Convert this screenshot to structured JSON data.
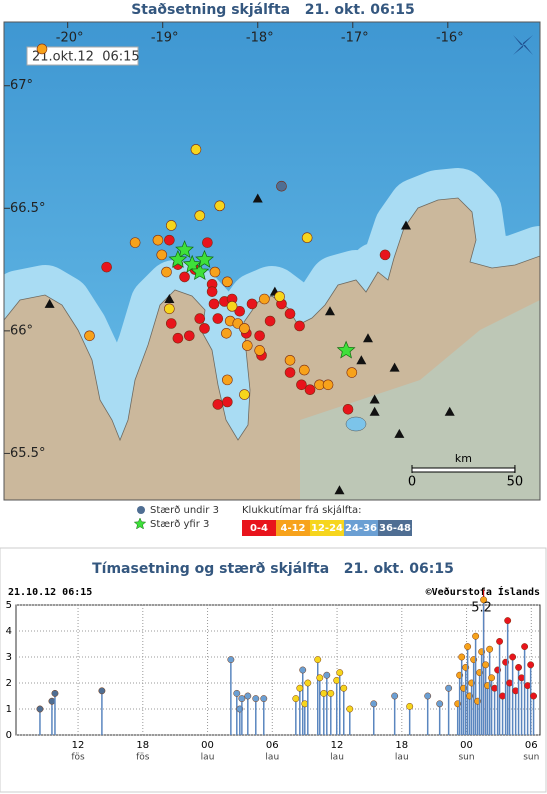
{
  "map": {
    "title": "Staðsetning skjálfta   21. okt. 06:15",
    "timestamp": "21.okt.12  06:15",
    "lonlim": [
      -20.67,
      -15.03
    ],
    "latlim": [
      65.31,
      67.26
    ],
    "lon_ticks": [
      {
        "value": -20,
        "label": "-20°"
      },
      {
        "value": -19,
        "label": "-19°"
      },
      {
        "value": -18,
        "label": "-18°"
      },
      {
        "value": -17,
        "label": "-17°"
      },
      {
        "value": -16,
        "label": "-16°"
      }
    ],
    "lat_ticks": [
      {
        "value": 67,
        "label": "67°"
      },
      {
        "value": 66.5,
        "label": "66.5°"
      },
      {
        "value": 66,
        "label": "66°"
      },
      {
        "value": 65.5,
        "label": "65.5°"
      }
    ],
    "scale": {
      "unit": "km",
      "ticks": [
        0,
        50
      ]
    },
    "quake_groups": [
      {
        "lon": [
          -19.59,
          -18.93,
          -18.84,
          -18.77,
          -18.66,
          -18.53,
          -18.48,
          -18.46,
          -18.56,
          -18.61,
          -18.72,
          -18.84,
          -18.91,
          -18.42,
          -18.35,
          -18.27,
          -18.19,
          -18.06,
          -17.98,
          -17.96,
          -17.87,
          -17.75,
          -17.66,
          -17.56,
          -17.66,
          -17.54,
          -17.45,
          -16.66,
          -17.05,
          -18.42,
          -18.32,
          -18.12,
          -18.48
        ],
        "lat": [
          66.26,
          66.37,
          66.27,
          66.22,
          66.25,
          66.36,
          66.19,
          66.11,
          66.01,
          66.05,
          65.98,
          65.97,
          66.03,
          66.05,
          66.12,
          66.13,
          66.08,
          66.11,
          65.98,
          65.9,
          66.04,
          66.11,
          66.07,
          66.02,
          65.83,
          65.78,
          65.76,
          66.31,
          65.68,
          65.7,
          65.71,
          65.99,
          66.16
        ]
      },
      {
        "lon": [
          -19.29,
          -19.05,
          -19.01,
          -18.96,
          -18.45,
          -18.32,
          -18.29,
          -18.21,
          -18.11,
          -17.93,
          -17.66,
          -17.51,
          -17.35,
          -17.26,
          -17.01,
          -19.77,
          -18.32,
          -17.98,
          -20.27,
          -18.14,
          -18.33
        ],
        "lat": [
          66.36,
          66.37,
          66.31,
          66.24,
          66.24,
          66.2,
          66.04,
          66.03,
          65.94,
          66.13,
          65.88,
          65.84,
          65.78,
          65.78,
          65.83,
          65.98,
          65.8,
          65.92,
          67.15,
          66.01,
          65.99
        ]
      },
      {
        "lon": [
          -18.65,
          -18.4,
          -18.91,
          -18.61,
          -17.48,
          -18.93,
          -18.14,
          -17.77,
          -18.27
        ],
        "lat": [
          66.74,
          66.51,
          66.43,
          66.47,
          66.38,
          66.09,
          65.74,
          66.14,
          66.1
        ]
      },
      {
        "lon": [],
        "lat": []
      },
      {
        "lon": [
          -17.75
        ],
        "lat": [
          66.59
        ]
      }
    ],
    "large_quakes": {
      "lon": [
        -18.77,
        -18.69,
        -18.61,
        -18.56,
        -18.84,
        -17.07
      ],
      "lat": [
        66.33,
        66.27,
        66.24,
        66.29,
        66.29,
        65.92
      ]
    },
    "stations": {
      "lon": [
        -20.19,
        -18.0,
        -16.44,
        -18.93,
        -17.82,
        -17.24,
        -16.56,
        -16.84,
        -16.77,
        -15.98,
        -16.51,
        -17.14,
        -16.91,
        -16.77
      ],
      "lat": [
        66.11,
        66.54,
        66.43,
        66.13,
        66.16,
        66.08,
        65.85,
        65.97,
        65.72,
        65.67,
        65.58,
        65.35,
        65.88,
        65.67
      ]
    },
    "legend": {
      "small": "Stærð undir 3",
      "large": "Stærð yfir 3",
      "hours_title": "Klukkutímar frá skjálfta:"
    }
  },
  "chart_data": {
    "type": "stem",
    "title": "Tímasetning og stærð skjálfta   21. okt. 06:15",
    "timestamp": "21.10.12 06:15",
    "credit": "©Veðurstofa Íslands",
    "xlim": [
      6.25,
      54.25
    ],
    "ylim": [
      0,
      5
    ],
    "yticks": [
      0,
      1,
      2,
      3,
      4,
      5
    ],
    "xticks": [
      {
        "value": 12,
        "label": "12",
        "day": "fös"
      },
      {
        "value": 18,
        "label": "18",
        "day": "fös"
      },
      {
        "value": 24,
        "label": "00",
        "day": "lau"
      },
      {
        "value": 30,
        "label": "06",
        "day": "lau"
      },
      {
        "value": 36,
        "label": "12",
        "day": "lau"
      },
      {
        "value": 42,
        "label": "18",
        "day": "lau"
      },
      {
        "value": 48,
        "label": "00",
        "day": "sun"
      },
      {
        "value": 54,
        "label": "06",
        "day": "sun"
      }
    ],
    "grid": true,
    "stem_color": "#5a86bf",
    "series": [
      {
        "name": "0-4",
        "color": "#e8141c",
        "x": [
          50.6,
          50.88,
          51.06,
          51.34,
          51.62,
          51.81,
          51.99,
          52.27,
          52.55,
          52.82,
          53.1,
          53.38,
          53.66,
          53.94,
          54.21
        ],
        "values": [
          1.8,
          2.5,
          3.6,
          1.5,
          2.8,
          4.4,
          2.0,
          3.0,
          1.7,
          2.6,
          2.2,
          3.4,
          1.9,
          2.7,
          1.5
        ]
      },
      {
        "name": "4-12",
        "color": "#f7a21b",
        "x": [
          47.18,
          47.36,
          47.55,
          47.73,
          47.92,
          48.1,
          48.29,
          48.47,
          48.66,
          48.84,
          49.03,
          49.21,
          49.4,
          49.58,
          49.77,
          49.95,
          50.14,
          50.32
        ],
        "values": [
          1.2,
          2.3,
          3.0,
          1.8,
          2.6,
          3.4,
          1.5,
          2.0,
          2.9,
          3.8,
          1.3,
          2.4,
          3.2,
          5.2,
          2.7,
          1.9,
          3.3,
          2.2
        ]
      },
      {
        "name": "12-24",
        "color": "#f6d51d",
        "x": [
          32.18,
          32.55,
          33.01,
          33.29,
          34.21,
          34.4,
          34.77,
          35.42,
          35.97,
          36.25,
          36.62,
          37.18,
          42.73
        ],
        "values": [
          1.4,
          1.8,
          1.2,
          2.0,
          2.9,
          2.2,
          1.6,
          1.6,
          2.1,
          2.4,
          1.8,
          1.0,
          1.1
        ]
      },
      {
        "name": "24-36",
        "color": "#6b9fd3",
        "x": [
          26.16,
          26.71,
          26.99,
          27.18,
          27.73,
          28.47,
          29.21,
          32.82,
          35.05,
          39.4,
          41.34,
          44.4,
          45.51,
          46.34
        ],
        "values": [
          2.9,
          1.6,
          1.0,
          1.4,
          1.5,
          1.4,
          1.4,
          2.5,
          2.3,
          1.2,
          1.5,
          1.5,
          1.2,
          1.8
        ]
      },
      {
        "name": "36-48",
        "color": "#4f6e93",
        "x": [
          8.47,
          9.58,
          9.86,
          14.21
        ],
        "values": [
          1.0,
          1.3,
          1.6,
          1.7
        ]
      }
    ],
    "annotation": {
      "x": 49.58,
      "value": 5.2,
      "label": "5.2"
    }
  }
}
